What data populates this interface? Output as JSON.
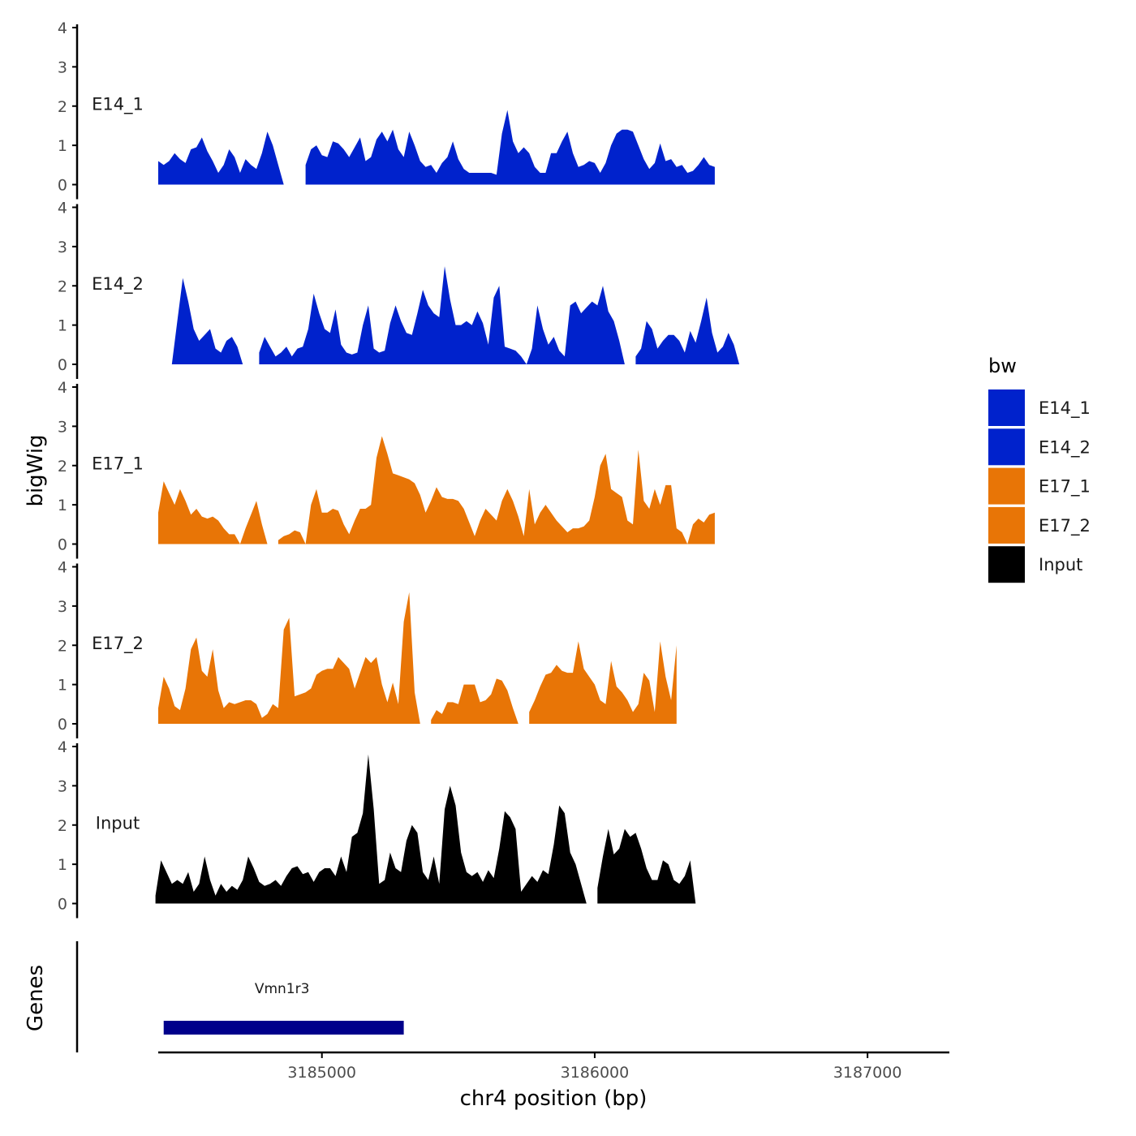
{
  "chart_data": {
    "type": "area",
    "title": "",
    "chromosome": "chr4",
    "xlabel": "chr4 position (bp)",
    "ylabel": "bigWig",
    "genes_label": "Genes",
    "x_ticks": [
      3185000,
      3186000,
      3187000
    ],
    "x_tick_labels": [
      "3185000",
      "3186000",
      "3187000"
    ],
    "xlim": [
      3184400,
      3187300
    ],
    "ylim": [
      0,
      4
    ],
    "y_ticks": [
      0,
      1,
      2,
      3,
      4
    ],
    "y_tick_labels": [
      "0",
      "1",
      "2",
      "3",
      "4"
    ],
    "legend": {
      "title": "bw",
      "position": "right",
      "entries": [
        {
          "label": "E14_1",
          "color": "#0022CC"
        },
        {
          "label": "E14_2",
          "color": "#0022CC"
        },
        {
          "label": "E17_1",
          "color": "#E87506"
        },
        {
          "label": "E17_2",
          "color": "#E87506"
        },
        {
          "label": "Input",
          "color": "#000000"
        }
      ]
    },
    "series": [
      {
        "name": "E14_1",
        "color": "#0022CC",
        "x_start": 3184400,
        "x_step": 20,
        "values": [
          0.6,
          0.5,
          0.6,
          0.8,
          0.65,
          0.55,
          0.9,
          0.95,
          1.2,
          0.85,
          0.6,
          0.3,
          0.5,
          0.9,
          0.7,
          0.3,
          0.65,
          0.5,
          0.4,
          0.8,
          1.35,
          1.0,
          0.5,
          0.0,
          null,
          null,
          null,
          0.5,
          0.9,
          1.0,
          0.75,
          0.7,
          1.1,
          1.05,
          0.9,
          0.7,
          0.95,
          1.2,
          0.6,
          0.7,
          1.15,
          1.35,
          1.1,
          1.4,
          0.9,
          0.7,
          1.35,
          1.0,
          0.6,
          0.45,
          0.5,
          0.3,
          0.55,
          0.7,
          1.1,
          0.65,
          0.4,
          0.3,
          0.3,
          0.3,
          0.3,
          0.3,
          0.25,
          1.3,
          1.9,
          1.1,
          0.8,
          0.95,
          0.8,
          0.45,
          0.3,
          0.3,
          0.8,
          0.8,
          1.1,
          1.35,
          0.8,
          0.45,
          0.5,
          0.6,
          0.55,
          0.3,
          0.55,
          1.0,
          1.3,
          1.4,
          1.4,
          1.35,
          1.0,
          0.65,
          0.4,
          0.55,
          1.05,
          0.6,
          0.65,
          0.45,
          0.5,
          0.3,
          0.35,
          0.5,
          0.7,
          0.5,
          0.45
        ]
      },
      {
        "name": "E14_2",
        "color": "#0022CC",
        "x_start": 3184450,
        "x_step": 20,
        "values": [
          0.0,
          1.1,
          2.2,
          1.6,
          0.9,
          0.6,
          0.75,
          0.9,
          0.4,
          0.3,
          0.6,
          0.7,
          0.45,
          0.0,
          null,
          null,
          0.3,
          0.7,
          0.45,
          0.2,
          0.3,
          0.45,
          0.2,
          0.4,
          0.45,
          0.9,
          1.8,
          1.3,
          0.9,
          0.8,
          1.4,
          0.5,
          0.3,
          0.25,
          0.3,
          1.0,
          1.5,
          0.4,
          0.3,
          0.35,
          1.05,
          1.5,
          1.1,
          0.8,
          0.75,
          1.3,
          1.9,
          1.5,
          1.3,
          1.2,
          2.5,
          1.65,
          1.0,
          1.0,
          1.1,
          1.0,
          1.35,
          1.05,
          0.5,
          1.7,
          2.0,
          0.45,
          0.4,
          0.35,
          0.2,
          0.0,
          0.4,
          1.5,
          0.9,
          0.5,
          0.7,
          0.35,
          0.2,
          1.5,
          1.6,
          1.3,
          1.45,
          1.6,
          1.5,
          2.0,
          1.35,
          1.1,
          0.6,
          0.0,
          null,
          0.2,
          0.4,
          1.1,
          0.9,
          0.4,
          0.6,
          0.75,
          0.75,
          0.6,
          0.3,
          0.85,
          0.55,
          1.1,
          1.7,
          0.8,
          0.3,
          0.45,
          0.8,
          0.5,
          0.0
        ]
      },
      {
        "name": "E17_1",
        "color": "#E87506",
        "x_start": 3184400,
        "x_step": 20,
        "values": [
          0.8,
          1.6,
          1.3,
          1.0,
          1.4,
          1.1,
          0.75,
          0.9,
          0.7,
          0.65,
          0.7,
          0.6,
          0.4,
          0.25,
          0.25,
          0.0,
          0.4,
          0.75,
          1.1,
          0.5,
          0.0,
          null,
          0.1,
          0.2,
          0.25,
          0.35,
          0.3,
          0.0,
          1.0,
          1.4,
          0.8,
          0.8,
          0.9,
          0.85,
          0.5,
          0.25,
          0.6,
          0.9,
          0.9,
          1.0,
          2.2,
          2.75,
          2.3,
          1.8,
          1.75,
          1.7,
          1.65,
          1.55,
          1.25,
          0.8,
          1.1,
          1.45,
          1.2,
          1.15,
          1.15,
          1.1,
          0.9,
          0.55,
          0.2,
          0.6,
          0.9,
          0.75,
          0.6,
          1.1,
          1.4,
          1.1,
          0.7,
          0.2,
          1.4,
          0.5,
          0.8,
          1.0,
          0.8,
          0.6,
          0.45,
          0.3,
          0.4,
          0.4,
          0.45,
          0.6,
          1.2,
          2.0,
          2.3,
          1.4,
          1.3,
          1.2,
          0.6,
          0.5,
          2.4,
          1.1,
          0.9,
          1.4,
          1.0,
          1.5,
          1.5,
          0.4,
          0.3,
          0.0,
          0.5,
          0.65,
          0.55,
          0.75,
          0.8
        ]
      },
      {
        "name": "E17_2",
        "color": "#E87506",
        "x_start": 3184400,
        "x_step": 20,
        "values": [
          0.4,
          1.2,
          0.9,
          0.45,
          0.35,
          0.9,
          1.9,
          2.2,
          1.35,
          1.2,
          1.9,
          0.85,
          0.4,
          0.55,
          0.5,
          0.55,
          0.6,
          0.6,
          0.5,
          0.15,
          0.25,
          0.5,
          0.4,
          2.4,
          2.7,
          0.7,
          0.75,
          0.8,
          0.9,
          1.25,
          1.35,
          1.4,
          1.4,
          1.7,
          1.55,
          1.4,
          0.9,
          1.3,
          1.7,
          1.55,
          1.7,
          1.0,
          0.55,
          1.05,
          0.5,
          2.6,
          3.35,
          0.8,
          0.0,
          null,
          0.1,
          0.35,
          0.25,
          0.55,
          0.55,
          0.5,
          1.0,
          1.0,
          1.0,
          0.55,
          0.6,
          0.75,
          1.15,
          1.1,
          0.85,
          0.4,
          0.0,
          null,
          0.3,
          0.6,
          0.95,
          1.25,
          1.3,
          1.5,
          1.35,
          1.3,
          1.3,
          2.1,
          1.4,
          1.2,
          1.0,
          0.6,
          0.5,
          1.6,
          0.95,
          0.8,
          0.6,
          0.3,
          0.5,
          1.3,
          1.1,
          0.3,
          2.1,
          1.2,
          0.6,
          2.0
        ]
      },
      {
        "name": "Input",
        "color": "#000000",
        "x_start": 3184390,
        "x_step": 20,
        "values": [
          0.2,
          1.1,
          0.8,
          0.5,
          0.6,
          0.5,
          0.8,
          0.3,
          0.5,
          1.2,
          0.6,
          0.2,
          0.5,
          0.3,
          0.45,
          0.35,
          0.6,
          1.2,
          0.9,
          0.55,
          0.45,
          0.5,
          0.6,
          0.45,
          0.7,
          0.9,
          0.95,
          0.75,
          0.8,
          0.55,
          0.8,
          0.9,
          0.9,
          0.7,
          1.2,
          0.8,
          1.7,
          1.8,
          2.3,
          3.8,
          2.4,
          0.5,
          0.6,
          1.3,
          0.9,
          0.8,
          1.6,
          2.0,
          1.8,
          0.8,
          0.6,
          1.2,
          0.5,
          2.4,
          3.0,
          2.5,
          1.3,
          0.8,
          0.7,
          0.8,
          0.55,
          0.85,
          0.65,
          1.4,
          2.35,
          2.2,
          1.9,
          0.3,
          0.5,
          0.7,
          0.55,
          0.85,
          0.75,
          1.5,
          2.5,
          2.3,
          1.3,
          1.0,
          0.5,
          0.0,
          null,
          0.4,
          1.2,
          1.9,
          1.25,
          1.4,
          1.9,
          1.7,
          1.8,
          1.4,
          0.9,
          0.6,
          0.6,
          1.1,
          1.0,
          0.6,
          0.5,
          0.7,
          1.1,
          0.0
        ]
      }
    ],
    "genes": [
      {
        "name": "Vmn1r3",
        "start": 3184420,
        "end": 3185300,
        "strand": "-",
        "color": "#00008B"
      }
    ]
  }
}
